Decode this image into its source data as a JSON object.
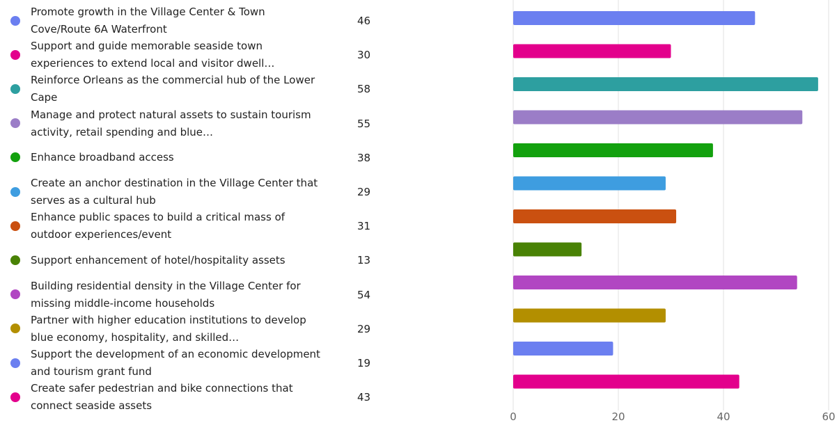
{
  "chart_data": {
    "type": "bar",
    "orientation": "horizontal",
    "categories": [
      "Promote growth in the Village Center & Town Cove/Route 6A Waterfront",
      "Support and guide memorable seaside town experiences to extend local and visitor dwell…",
      "Reinforce Orleans as the commercial hub of the Lower Cape",
      "Manage and protect natural assets to sustain tourism activity, retail spending and blue…",
      "Enhance broadband access",
      "Create an anchor destination in the Village Center that serves as a cultural hub",
      "Enhance public spaces to build a critical mass of outdoor experiences/event",
      "Support enhancement of hotel/hospitality assets",
      "Building residential density in the Village Center for missing middle-income households",
      "Partner with higher education institutions to develop blue economy, hospitality, and skilled…",
      "Support the development of an economic development and tourism grant fund",
      "Create safer pedestrian and bike connections that connect seaside assets"
    ],
    "values": [
      46,
      30,
      58,
      55,
      38,
      29,
      31,
      13,
      54,
      29,
      19,
      43
    ],
    "colors": [
      "#6b7ff0",
      "#e3008c",
      "#2d9fa0",
      "#9b7dc7",
      "#13a10e",
      "#3e9de0",
      "#ca5010",
      "#498205",
      "#b146c2",
      "#b38f00",
      "#6b7ff0",
      "#e3008c"
    ],
    "xlim": [
      0,
      60
    ],
    "xticks": [
      0,
      20,
      40,
      60
    ],
    "grid": true
  }
}
